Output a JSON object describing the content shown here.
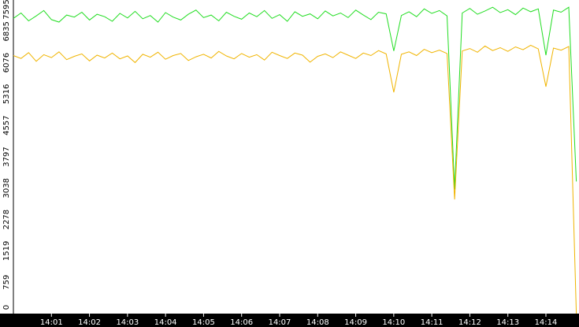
{
  "chart_data": {
    "type": "line",
    "x": [
      0,
      0.2,
      0.4,
      0.6,
      0.8,
      1,
      1.2,
      1.4,
      1.6,
      1.8,
      2,
      2.2,
      2.4,
      2.6,
      2.8,
      3,
      3.2,
      3.4,
      3.6,
      3.8,
      4,
      4.2,
      4.4,
      4.6,
      4.8,
      5,
      5.2,
      5.4,
      5.6,
      5.8,
      6,
      6.2,
      6.4,
      6.6,
      6.8,
      7,
      7.2,
      7.4,
      7.6,
      7.8,
      8,
      8.2,
      8.4,
      8.6,
      8.8,
      9,
      9.2,
      9.4,
      9.6,
      9.8,
      10,
      10.2,
      10.4,
      10.6,
      10.8,
      11,
      11.2,
      11.4,
      11.6,
      11.8,
      12,
      12.2,
      12.4,
      12.6,
      12.8,
      13,
      13.2,
      13.4,
      13.6,
      13.8,
      14,
      14.2,
      14.4,
      14.6,
      14.8
    ],
    "series": [
      {
        "color": "#22dd22",
        "values": [
          7150,
          7280,
          7090,
          7210,
          7340,
          7120,
          7060,
          7230,
          7180,
          7300,
          7110,
          7250,
          7190,
          7080,
          7270,
          7160,
          7320,
          7140,
          7220,
          7060,
          7290,
          7180,
          7110,
          7250,
          7350,
          7170,
          7230,
          7090,
          7300,
          7200,
          7130,
          7280,
          7190,
          7340,
          7150,
          7240,
          7080,
          7310,
          7200,
          7260,
          7140,
          7330,
          7210,
          7280,
          7170,
          7350,
          7230,
          7120,
          7300,
          7260,
          6360,
          7220,
          7310,
          7190,
          7380,
          7270,
          7340,
          7210,
          3010,
          7280,
          7390,
          7250,
          7330,
          7420,
          7290,
          7360,
          7240,
          7400,
          7310,
          7380,
          6260,
          7350,
          7300,
          7420,
          3200
        ]
      },
      {
        "color": "#f0b400",
        "values": [
          6250,
          6180,
          6320,
          6110,
          6270,
          6200,
          6340,
          6150,
          6230,
          6290,
          6120,
          6260,
          6190,
          6310,
          6170,
          6240,
          6080,
          6280,
          6210,
          6330,
          6160,
          6250,
          6300,
          6130,
          6220,
          6280,
          6190,
          6350,
          6240,
          6170,
          6300,
          6210,
          6270,
          6140,
          6330,
          6250,
          6180,
          6310,
          6260,
          6090,
          6230,
          6290,
          6200,
          6340,
          6260,
          6180,
          6310,
          6250,
          6370,
          6290,
          5360,
          6280,
          6340,
          6250,
          6400,
          6320,
          6380,
          6300,
          2765,
          6360,
          6420,
          6330,
          6480,
          6370,
          6440,
          6350,
          6460,
          6390,
          6500,
          6410,
          5495,
          6430,
          6380,
          6470,
          0
        ]
      }
    ],
    "xlim": [
      0,
      14.87
    ],
    "xticks": [
      {
        "value": 1,
        "label": "14:01"
      },
      {
        "value": 2,
        "label": "14:02"
      },
      {
        "value": 3,
        "label": "14:03"
      },
      {
        "value": 4,
        "label": "14:04"
      },
      {
        "value": 5,
        "label": "14:05"
      },
      {
        "value": 6,
        "label": "14:06"
      },
      {
        "value": 7,
        "label": "14:07"
      },
      {
        "value": 8,
        "label": "14:08"
      },
      {
        "value": 9,
        "label": "14:09"
      },
      {
        "value": 10,
        "label": "14:10"
      },
      {
        "value": 11,
        "label": "14:11"
      },
      {
        "value": 12,
        "label": "14:12"
      },
      {
        "value": 13,
        "label": "14:13"
      },
      {
        "value": 14,
        "label": "14:14"
      }
    ],
    "ylim": [
      0,
      7595
    ],
    "yticks": [
      0,
      759,
      1519,
      2278,
      3038,
      3797,
      4557,
      5316,
      6076,
      6835,
      7595
    ],
    "grid": false
  }
}
